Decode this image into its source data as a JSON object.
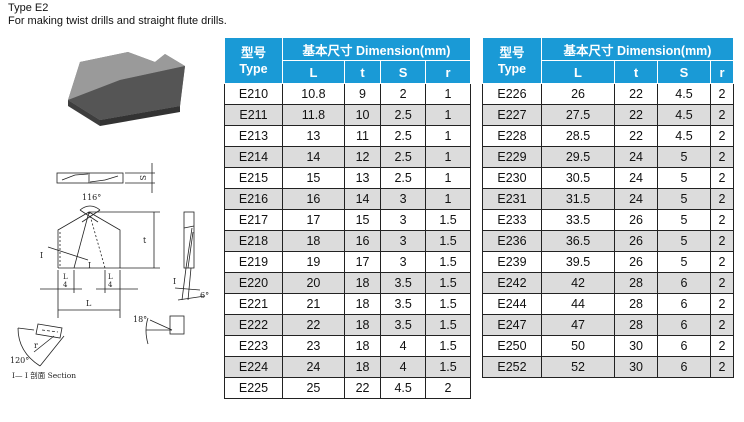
{
  "title": "Type E2",
  "subtitle": "For making twist drills and straight flute drills.",
  "colors": {
    "header": "#1a9ad6",
    "alt_row": "#dcdcdc"
  },
  "table_headers": {
    "model_cn": "型号",
    "model_en": "Type",
    "dimension": "基本尺寸  Dimension(mm)",
    "cols": [
      "L",
      "t",
      "S",
      "r"
    ]
  },
  "drawing": {
    "angle_top": "116°",
    "label_s": "S",
    "label_t": "t",
    "label_l": "L",
    "label_l4_num": "L",
    "label_l4_den": "4",
    "label_i": "I",
    "angle_6": "6°",
    "angle_18": "18°",
    "angle_120": "120°",
    "label_r": "r",
    "section_label": "I— I  剖面 Section"
  },
  "left_table": [
    [
      "E210",
      "10.8",
      "9",
      "2",
      "1"
    ],
    [
      "E211",
      "11.8",
      "10",
      "2.5",
      "1"
    ],
    [
      "E213",
      "13",
      "11",
      "2.5",
      "1"
    ],
    [
      "E214",
      "14",
      "12",
      "2.5",
      "1"
    ],
    [
      "E215",
      "15",
      "13",
      "2.5",
      "1"
    ],
    [
      "E216",
      "16",
      "14",
      "3",
      "1"
    ],
    [
      "E217",
      "17",
      "15",
      "3",
      "1.5"
    ],
    [
      "E218",
      "18",
      "16",
      "3",
      "1.5"
    ],
    [
      "E219",
      "19",
      "17",
      "3",
      "1.5"
    ],
    [
      "E220",
      "20",
      "18",
      "3.5",
      "1.5"
    ],
    [
      "E221",
      "21",
      "18",
      "3.5",
      "1.5"
    ],
    [
      "E222",
      "22",
      "18",
      "3.5",
      "1.5"
    ],
    [
      "E223",
      "23",
      "18",
      "4",
      "1.5"
    ],
    [
      "E224",
      "24",
      "18",
      "4",
      "1.5"
    ],
    [
      "E225",
      "25",
      "22",
      "4.5",
      "2"
    ]
  ],
  "right_table": [
    [
      "E226",
      "26",
      "22",
      "4.5",
      "2"
    ],
    [
      "E227",
      "27.5",
      "22",
      "4.5",
      "2"
    ],
    [
      "E228",
      "28.5",
      "22",
      "4.5",
      "2"
    ],
    [
      "E229",
      "29.5",
      "24",
      "5",
      "2"
    ],
    [
      "E230",
      "30.5",
      "24",
      "5",
      "2"
    ],
    [
      "E231",
      "31.5",
      "24",
      "5",
      "2"
    ],
    [
      "E233",
      "33.5",
      "26",
      "5",
      "2"
    ],
    [
      "E236",
      "36.5",
      "26",
      "5",
      "2"
    ],
    [
      "E239",
      "39.5",
      "26",
      "5",
      "2"
    ],
    [
      "E242",
      "42",
      "28",
      "6",
      "2"
    ],
    [
      "E244",
      "44",
      "28",
      "6",
      "2"
    ],
    [
      "E247",
      "47",
      "28",
      "6",
      "2"
    ],
    [
      "E250",
      "50",
      "30",
      "6",
      "2"
    ],
    [
      "E252",
      "52",
      "30",
      "6",
      "2"
    ]
  ]
}
